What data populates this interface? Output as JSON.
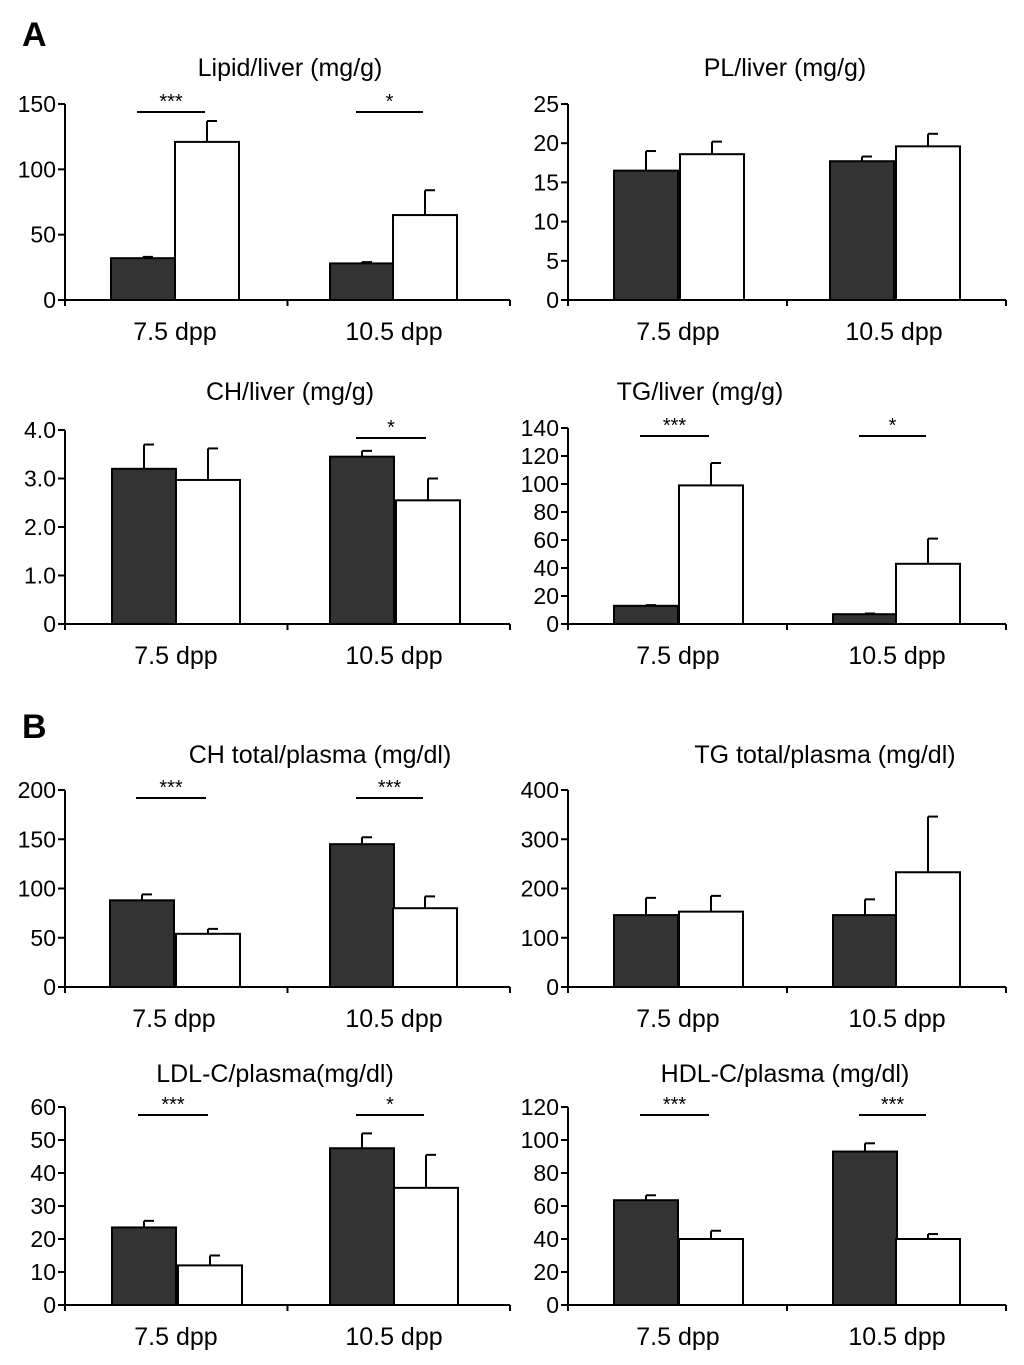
{
  "panels": [
    {
      "letter": "A"
    },
    {
      "letter": "B"
    }
  ],
  "colors": {
    "dark_bar": "#333333",
    "light_bar": "#ffffff",
    "axis": "#000000"
  },
  "chart_data": [
    {
      "type": "bar",
      "panel": "A",
      "title": "Lipid/liver (mg/g)",
      "categories": [
        "7.5 dpp",
        "10.5 dpp"
      ],
      "series": [
        {
          "values": [
            32,
            28
          ],
          "errors": [
            1,
            1
          ]
        },
        {
          "values": [
            121,
            65
          ],
          "errors": [
            16,
            19
          ]
        }
      ],
      "yticks": [
        "0",
        "50",
        "100",
        "150"
      ],
      "ylim": [
        0,
        150
      ],
      "significance": [
        "***",
        "*"
      ]
    },
    {
      "type": "bar",
      "panel": "A",
      "title": "PL/liver (mg/g)",
      "categories": [
        "7.5 dpp",
        "10.5 dpp"
      ],
      "series": [
        {
          "values": [
            16.5,
            17.7
          ],
          "errors": [
            2.5,
            0.6
          ]
        },
        {
          "values": [
            18.6,
            19.6
          ],
          "errors": [
            1.6,
            1.6
          ]
        }
      ],
      "yticks": [
        "0",
        "5",
        "10",
        "15",
        "20",
        "25"
      ],
      "ylim": [
        0,
        25
      ],
      "significance": [
        "",
        ""
      ]
    },
    {
      "type": "bar",
      "panel": "A",
      "title": "CH/liver (mg/g)",
      "categories": [
        "7.5 dpp",
        "10.5 dpp"
      ],
      "series": [
        {
          "values": [
            3.2,
            3.45
          ],
          "errors": [
            0.5,
            0.12
          ]
        },
        {
          "values": [
            2.97,
            2.55
          ],
          "errors": [
            0.65,
            0.45
          ]
        }
      ],
      "yticks": [
        "0",
        "1.0",
        "2.0",
        "3.0",
        "4.0"
      ],
      "ylim": [
        0,
        4
      ],
      "significance": [
        "",
        "*"
      ]
    },
    {
      "type": "bar",
      "panel": "A",
      "title": "TG/liver (mg/g)",
      "categories": [
        "7.5 dpp",
        "10.5 dpp"
      ],
      "series": [
        {
          "values": [
            13,
            7
          ],
          "errors": [
            0.5,
            0.5
          ]
        },
        {
          "values": [
            99,
            43
          ],
          "errors": [
            16,
            18
          ]
        }
      ],
      "yticks": [
        "0",
        "20",
        "40",
        "60",
        "80",
        "100",
        "120",
        "140"
      ],
      "ylim": [
        0,
        140
      ],
      "significance": [
        "***",
        "*"
      ]
    },
    {
      "type": "bar",
      "panel": "B",
      "title": "CH total/plasma (mg/dl)",
      "categories": [
        "7.5 dpp",
        "10.5 dpp"
      ],
      "series": [
        {
          "values": [
            88,
            145
          ],
          "errors": [
            6,
            7
          ]
        },
        {
          "values": [
            54,
            80
          ],
          "errors": [
            5,
            12
          ]
        }
      ],
      "yticks": [
        "0",
        "50",
        "100",
        "150",
        "200"
      ],
      "ylim": [
        0,
        200
      ],
      "significance": [
        "***",
        "***"
      ]
    },
    {
      "type": "bar",
      "panel": "B",
      "title": "TG total/plasma (mg/dl)",
      "categories": [
        "7.5 dpp",
        "10.5 dpp"
      ],
      "series": [
        {
          "values": [
            146,
            146
          ],
          "errors": [
            35,
            32
          ]
        },
        {
          "values": [
            153,
            233
          ],
          "errors": [
            32,
            113
          ]
        }
      ],
      "yticks": [
        "0",
        "100",
        "200",
        "300",
        "400"
      ],
      "ylim": [
        0,
        400
      ],
      "significance": [
        "",
        ""
      ]
    },
    {
      "type": "bar",
      "panel": "B",
      "title": "LDL-C/plasma(mg/dl)",
      "categories": [
        "7.5 dpp",
        "10.5 dpp"
      ],
      "series": [
        {
          "values": [
            23.5,
            47.5
          ],
          "errors": [
            2,
            4.5
          ]
        },
        {
          "values": [
            12,
            35.5
          ],
          "errors": [
            3,
            10
          ]
        }
      ],
      "yticks": [
        "0",
        "10",
        "20",
        "30",
        "40",
        "50",
        "60"
      ],
      "ylim": [
        0,
        60
      ],
      "significance": [
        "***",
        "*"
      ]
    },
    {
      "type": "bar",
      "panel": "B",
      "title": "HDL-C/plasma (mg/dl)",
      "categories": [
        "7.5 dpp",
        "10.5 dpp"
      ],
      "series": [
        {
          "values": [
            63.5,
            93
          ],
          "errors": [
            3,
            5
          ]
        },
        {
          "values": [
            40,
            40
          ],
          "errors": [
            5,
            3
          ]
        }
      ],
      "yticks": [
        "0",
        "20",
        "40",
        "60",
        "80",
        "100",
        "120"
      ],
      "ylim": [
        0,
        120
      ],
      "significance": [
        "***",
        "***"
      ]
    }
  ]
}
